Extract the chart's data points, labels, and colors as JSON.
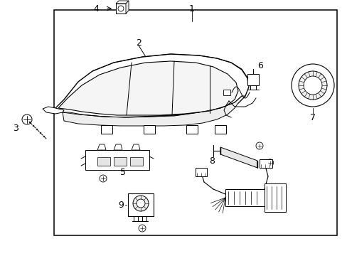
{
  "bg_color": "#ffffff",
  "line_color": "#000000",
  "border": [
    0.155,
    0.04,
    0.815,
    0.88
  ],
  "label_fontsize": 9,
  "small_fontsize": 7
}
